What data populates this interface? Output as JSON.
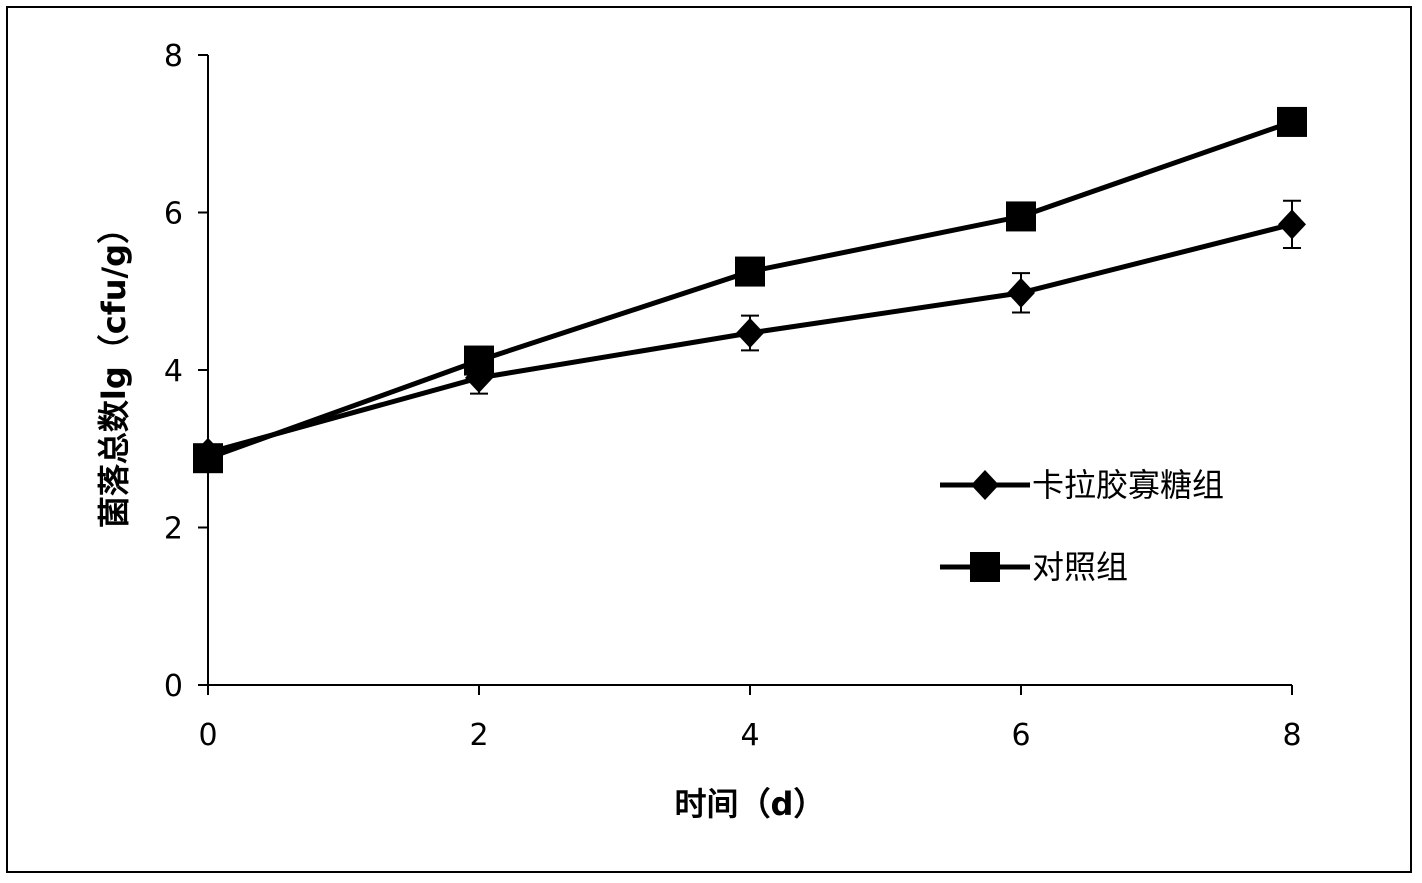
{
  "chart_data": {
    "type": "line",
    "x": [
      0,
      2,
      4,
      6,
      8
    ],
    "xlabel": "时间（d）",
    "ylabel": "菌落总数lg（cfu/g）",
    "xlim": [
      0,
      8
    ],
    "ylim": [
      0,
      8
    ],
    "x_ticks": [
      "0",
      "2",
      "4",
      "6",
      "8"
    ],
    "y_ticks": [
      "0",
      "2",
      "4",
      "6",
      "8"
    ],
    "grid": false,
    "legend_position": "right",
    "series": [
      {
        "name": "卡拉胶寡糖组",
        "marker": "diamond",
        "values": [
          2.95,
          3.9,
          4.47,
          4.98,
          5.85
        ],
        "error": [
          0.05,
          0.2,
          0.22,
          0.25,
          0.3
        ],
        "color": "#000000"
      },
      {
        "name": "对照组",
        "marker": "square",
        "values": [
          2.88,
          4.12,
          5.25,
          5.95,
          7.15
        ],
        "error": [
          0,
          0,
          0,
          0,
          0
        ],
        "color": "#000000"
      }
    ]
  }
}
